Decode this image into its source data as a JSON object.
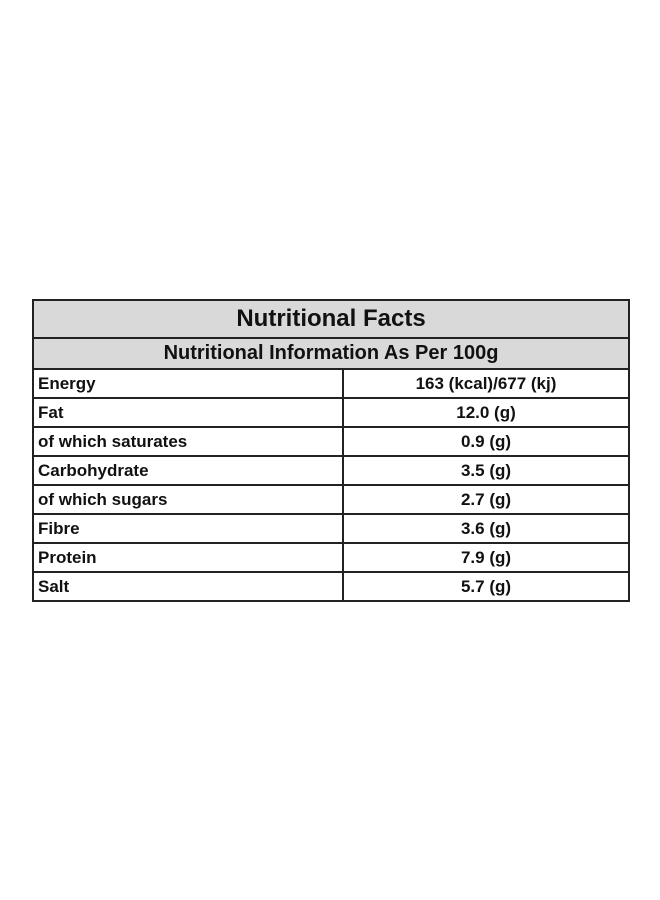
{
  "table": {
    "title": "Nutritional Facts",
    "subtitle": "Nutritional Information As Per 100g",
    "rows": [
      [
        "Energy",
        "163 (kcal)/677 (kj)"
      ],
      [
        "Fat",
        "12.0 (g)"
      ],
      [
        "of which saturates",
        "0.9 (g)"
      ],
      [
        "Carbohydrate",
        "3.5 (g)"
      ],
      [
        "of which sugars",
        "2.7 (g)"
      ],
      [
        "Fibre",
        "3.6 (g)"
      ],
      [
        "Protein",
        "7.9 (g)"
      ],
      [
        "Salt",
        "5.7 (g)"
      ]
    ]
  }
}
